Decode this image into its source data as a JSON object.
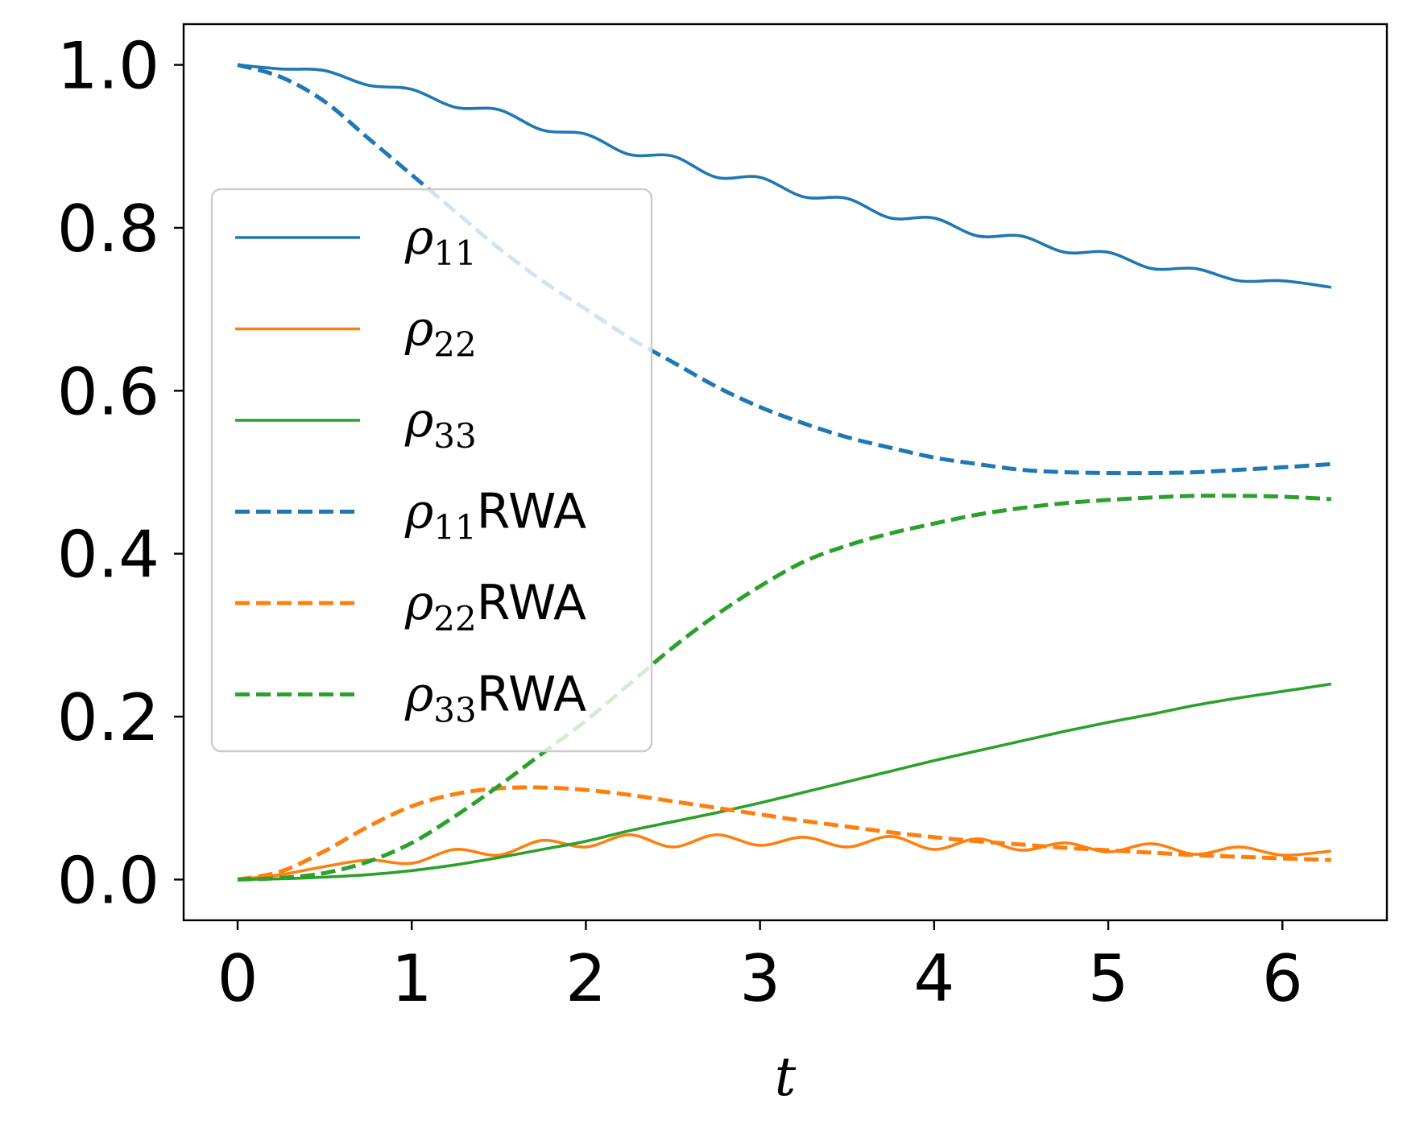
{
  "chart_data": {
    "type": "line",
    "title": "",
    "xlabel": "t",
    "ylabel": "",
    "xlim": [
      -0.31,
      6.6
    ],
    "ylim": [
      -0.05,
      1.05
    ],
    "xticks": [
      0,
      1,
      2,
      3,
      4,
      5,
      6
    ],
    "xtick_labels": [
      "0",
      "1",
      "2",
      "3",
      "4",
      "5",
      "6"
    ],
    "yticks": [
      0.0,
      0.2,
      0.4,
      0.6,
      0.8,
      1.0
    ],
    "ytick_labels": [
      "0.0",
      "0.2",
      "0.4",
      "0.6",
      "0.8",
      "1.0"
    ],
    "grid": false,
    "legend_position": "center-left",
    "x": [
      0.0,
      0.25,
      0.5,
      0.75,
      1.0,
      1.25,
      1.5,
      1.75,
      2.0,
      2.25,
      2.5,
      2.75,
      3.0,
      3.25,
      3.5,
      3.75,
      4.0,
      4.25,
      4.5,
      4.75,
      5.0,
      5.25,
      5.5,
      5.75,
      6.0,
      6.28
    ],
    "series": [
      {
        "name": "ρ11",
        "legend_symbol": "ρ",
        "legend_sub": "11",
        "legend_suffix": "",
        "color": "#1f77b4",
        "style": "solid",
        "values": [
          1.0,
          0.995,
          0.993,
          0.975,
          0.97,
          0.948,
          0.945,
          0.92,
          0.915,
          0.89,
          0.888,
          0.862,
          0.862,
          0.838,
          0.836,
          0.812,
          0.812,
          0.79,
          0.79,
          0.77,
          0.77,
          0.75,
          0.75,
          0.735,
          0.735,
          0.727
        ]
      },
      {
        "name": "ρ22",
        "legend_symbol": "ρ",
        "legend_sub": "22",
        "legend_suffix": "",
        "color": "#ff7f0e",
        "style": "solid",
        "values": [
          0.0,
          0.006,
          0.016,
          0.024,
          0.02,
          0.037,
          0.03,
          0.048,
          0.04,
          0.055,
          0.04,
          0.055,
          0.042,
          0.052,
          0.04,
          0.053,
          0.037,
          0.05,
          0.036,
          0.045,
          0.034,
          0.044,
          0.031,
          0.04,
          0.03,
          0.035
        ]
      },
      {
        "name": "ρ33",
        "legend_symbol": "ρ",
        "legend_sub": "33",
        "legend_suffix": "",
        "color": "#2ca02c",
        "style": "solid",
        "values": [
          0.0,
          0.001,
          0.003,
          0.006,
          0.011,
          0.018,
          0.027,
          0.037,
          0.047,
          0.06,
          0.071,
          0.082,
          0.094,
          0.107,
          0.12,
          0.133,
          0.146,
          0.158,
          0.17,
          0.182,
          0.193,
          0.203,
          0.214,
          0.223,
          0.231,
          0.24
        ]
      },
      {
        "name": "ρ11RWA",
        "legend_symbol": "ρ",
        "legend_sub": "11",
        "legend_suffix": "RWA",
        "color": "#1f77b4",
        "style": "dashed",
        "values": [
          1.0,
          0.985,
          0.955,
          0.91,
          0.865,
          0.82,
          0.775,
          0.735,
          0.7,
          0.665,
          0.635,
          0.605,
          0.58,
          0.56,
          0.543,
          0.53,
          0.518,
          0.51,
          0.503,
          0.5,
          0.499,
          0.499,
          0.5,
          0.503,
          0.506,
          0.51
        ]
      },
      {
        "name": "ρ22RWA",
        "legend_symbol": "ρ",
        "legend_sub": "22",
        "legend_suffix": "RWA",
        "color": "#ff7f0e",
        "style": "dashed",
        "values": [
          0.0,
          0.01,
          0.035,
          0.065,
          0.09,
          0.105,
          0.112,
          0.113,
          0.11,
          0.104,
          0.096,
          0.088,
          0.08,
          0.072,
          0.065,
          0.058,
          0.052,
          0.047,
          0.043,
          0.039,
          0.036,
          0.033,
          0.03,
          0.028,
          0.026,
          0.024
        ]
      },
      {
        "name": "ρ33RWA",
        "legend_symbol": "ρ",
        "legend_sub": "33",
        "legend_suffix": "RWA",
        "color": "#2ca02c",
        "style": "dashed",
        "values": [
          0.0,
          0.002,
          0.008,
          0.022,
          0.045,
          0.078,
          0.115,
          0.155,
          0.195,
          0.24,
          0.285,
          0.325,
          0.36,
          0.39,
          0.41,
          0.425,
          0.437,
          0.448,
          0.456,
          0.462,
          0.466,
          0.469,
          0.471,
          0.471,
          0.47,
          0.467
        ]
      }
    ]
  }
}
